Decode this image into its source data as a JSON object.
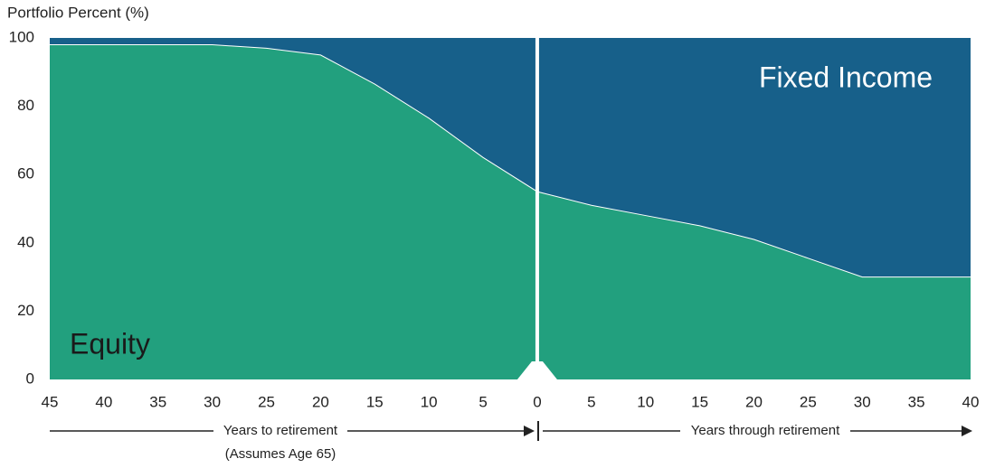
{
  "chart_data": {
    "type": "stacked-area",
    "y_axis_title": "Portfolio Percent (%)",
    "x_axis_labels": {
      "left": "Years to retirement",
      "left_note": "(Assumes Age 65)",
      "right": "Years through retirement"
    },
    "x": [
      -45,
      -40,
      -35,
      -30,
      -25,
      -20,
      -15,
      -10,
      -5,
      0,
      5,
      10,
      15,
      20,
      25,
      30,
      35,
      40
    ],
    "series": [
      {
        "name": "Equity",
        "color": "#22a07e",
        "values": [
          98,
          98,
          98,
          98,
          97,
          95,
          86.5,
          76.5,
          65,
          55,
          51,
          48,
          45,
          41,
          35.5,
          30,
          30,
          30
        ]
      },
      {
        "name": "Fixed Income",
        "color": "#17608a",
        "values": [
          2,
          2,
          2,
          2,
          3,
          5,
          13.5,
          23.5,
          35,
          45,
          49,
          52,
          55,
          59,
          64.5,
          70,
          70,
          70
        ]
      }
    ],
    "xlim": [
      -45,
      40
    ],
    "xticks": [
      {
        "value": -45,
        "label": "45"
      },
      {
        "value": -40,
        "label": "40"
      },
      {
        "value": -35,
        "label": "35"
      },
      {
        "value": -30,
        "label": "30"
      },
      {
        "value": -25,
        "label": "25"
      },
      {
        "value": -20,
        "label": "20"
      },
      {
        "value": -15,
        "label": "15"
      },
      {
        "value": -10,
        "label": "10"
      },
      {
        "value": -5,
        "label": "5"
      },
      0,
      5,
      10,
      15,
      20,
      25,
      30,
      35,
      40
    ],
    "ylim": [
      0,
      100
    ],
    "yticks": [
      0,
      20,
      40,
      60,
      80,
      100
    ]
  }
}
